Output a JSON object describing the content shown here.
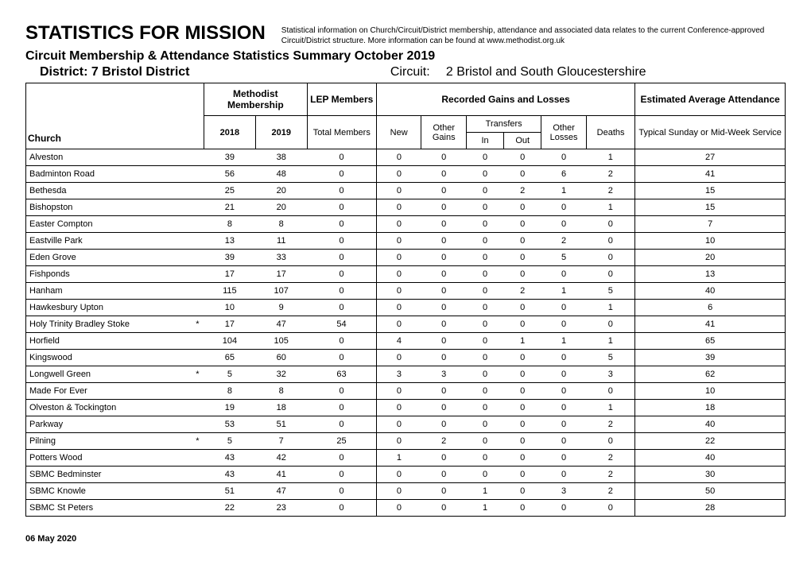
{
  "header": {
    "title": "STATISTICS FOR MISSION",
    "note": "Statistical information on Church/Circuit/District membership, attendance and associated data relates to the current Conference-approved Circuit/District structure. More information can be found at www.methodist.org.uk",
    "section": "Circuit Membership & Attendance Statistics Summary October 2019",
    "district_label": "District:",
    "district_value": "7 Bristol District",
    "circuit_label": "Circuit:",
    "circuit_value": "2 Bristol and South Gloucestershire"
  },
  "columns": {
    "church": "Church",
    "methodist_membership": "Methodist Membership",
    "lep_members": "LEP Members",
    "recorded": "Recorded Gains and Losses",
    "est_avg": "Estimated Average Attendance",
    "y2018": "2018",
    "y2019": "2019",
    "total_members": "Total Members",
    "new": "New",
    "other_gains": "Other Gains",
    "transfers": "Transfers",
    "in": "In",
    "out": "Out",
    "other_losses": "Other Losses",
    "deaths": "Deaths",
    "typical": "Typical Sunday or Mid-Week Service"
  },
  "rows": [
    {
      "church": "Alveston",
      "star": "",
      "y18": "39",
      "y19": "38",
      "lep": "0",
      "new": "0",
      "og": "0",
      "in": "0",
      "out": "0",
      "ol": "0",
      "d": "1",
      "att": "27"
    },
    {
      "church": "Badminton Road",
      "star": "",
      "y18": "56",
      "y19": "48",
      "lep": "0",
      "new": "0",
      "og": "0",
      "in": "0",
      "out": "0",
      "ol": "6",
      "d": "2",
      "att": "41"
    },
    {
      "church": "Bethesda",
      "star": "",
      "y18": "25",
      "y19": "20",
      "lep": "0",
      "new": "0",
      "og": "0",
      "in": "0",
      "out": "2",
      "ol": "1",
      "d": "2",
      "att": "15"
    },
    {
      "church": "Bishopston",
      "star": "",
      "y18": "21",
      "y19": "20",
      "lep": "0",
      "new": "0",
      "og": "0",
      "in": "0",
      "out": "0",
      "ol": "0",
      "d": "1",
      "att": "15"
    },
    {
      "church": "Easter Compton",
      "star": "",
      "y18": "8",
      "y19": "8",
      "lep": "0",
      "new": "0",
      "og": "0",
      "in": "0",
      "out": "0",
      "ol": "0",
      "d": "0",
      "att": "7"
    },
    {
      "church": "Eastville Park",
      "star": "",
      "y18": "13",
      "y19": "11",
      "lep": "0",
      "new": "0",
      "og": "0",
      "in": "0",
      "out": "0",
      "ol": "2",
      "d": "0",
      "att": "10"
    },
    {
      "church": "Eden Grove",
      "star": "",
      "y18": "39",
      "y19": "33",
      "lep": "0",
      "new": "0",
      "og": "0",
      "in": "0",
      "out": "0",
      "ol": "5",
      "d": "0",
      "att": "20"
    },
    {
      "church": "Fishponds",
      "star": "",
      "y18": "17",
      "y19": "17",
      "lep": "0",
      "new": "0",
      "og": "0",
      "in": "0",
      "out": "0",
      "ol": "0",
      "d": "0",
      "att": "13"
    },
    {
      "church": "Hanham",
      "star": "",
      "y18": "115",
      "y19": "107",
      "lep": "0",
      "new": "0",
      "og": "0",
      "in": "0",
      "out": "2",
      "ol": "1",
      "d": "5",
      "att": "40"
    },
    {
      "church": "Hawkesbury Upton",
      "star": "",
      "y18": "10",
      "y19": "9",
      "lep": "0",
      "new": "0",
      "og": "0",
      "in": "0",
      "out": "0",
      "ol": "0",
      "d": "1",
      "att": "6"
    },
    {
      "church": "Holy Trinity Bradley Stoke",
      "star": "*",
      "y18": "17",
      "y19": "47",
      "lep": "54",
      "new": "0",
      "og": "0",
      "in": "0",
      "out": "0",
      "ol": "0",
      "d": "0",
      "att": "41"
    },
    {
      "church": "Horfield",
      "star": "",
      "y18": "104",
      "y19": "105",
      "lep": "0",
      "new": "4",
      "og": "0",
      "in": "0",
      "out": "1",
      "ol": "1",
      "d": "1",
      "att": "65"
    },
    {
      "church": "Kingswood",
      "star": "",
      "y18": "65",
      "y19": "60",
      "lep": "0",
      "new": "0",
      "og": "0",
      "in": "0",
      "out": "0",
      "ol": "0",
      "d": "5",
      "att": "39"
    },
    {
      "church": "Longwell Green",
      "star": "*",
      "y18": "5",
      "y19": "32",
      "lep": "63",
      "new": "3",
      "og": "3",
      "in": "0",
      "out": "0",
      "ol": "0",
      "d": "3",
      "att": "62"
    },
    {
      "church": "Made For Ever",
      "star": "",
      "y18": "8",
      "y19": "8",
      "lep": "0",
      "new": "0",
      "og": "0",
      "in": "0",
      "out": "0",
      "ol": "0",
      "d": "0",
      "att": "10"
    },
    {
      "church": "Olveston & Tockington",
      "star": "",
      "y18": "19",
      "y19": "18",
      "lep": "0",
      "new": "0",
      "og": "0",
      "in": "0",
      "out": "0",
      "ol": "0",
      "d": "1",
      "att": "18"
    },
    {
      "church": "Parkway",
      "star": "",
      "y18": "53",
      "y19": "51",
      "lep": "0",
      "new": "0",
      "og": "0",
      "in": "0",
      "out": "0",
      "ol": "0",
      "d": "2",
      "att": "40"
    },
    {
      "church": "Pilning",
      "star": "*",
      "y18": "5",
      "y19": "7",
      "lep": "25",
      "new": "0",
      "og": "2",
      "in": "0",
      "out": "0",
      "ol": "0",
      "d": "0",
      "att": "22"
    },
    {
      "church": "Potters Wood",
      "star": "",
      "y18": "43",
      "y19": "42",
      "lep": "0",
      "new": "1",
      "og": "0",
      "in": "0",
      "out": "0",
      "ol": "0",
      "d": "2",
      "att": "40"
    },
    {
      "church": "SBMC Bedminster",
      "star": "",
      "y18": "43",
      "y19": "41",
      "lep": "0",
      "new": "0",
      "og": "0",
      "in": "0",
      "out": "0",
      "ol": "0",
      "d": "2",
      "att": "30"
    },
    {
      "church": "SBMC Knowle",
      "star": "",
      "y18": "51",
      "y19": "47",
      "lep": "0",
      "new": "0",
      "og": "0",
      "in": "1",
      "out": "0",
      "ol": "3",
      "d": "2",
      "att": "50"
    },
    {
      "church": "SBMC St Peters",
      "star": "",
      "y18": "22",
      "y19": "23",
      "lep": "0",
      "new": "0",
      "og": "0",
      "in": "1",
      "out": "0",
      "ol": "0",
      "d": "0",
      "att": "28"
    }
  ],
  "footer": {
    "date": "06 May 2020"
  }
}
